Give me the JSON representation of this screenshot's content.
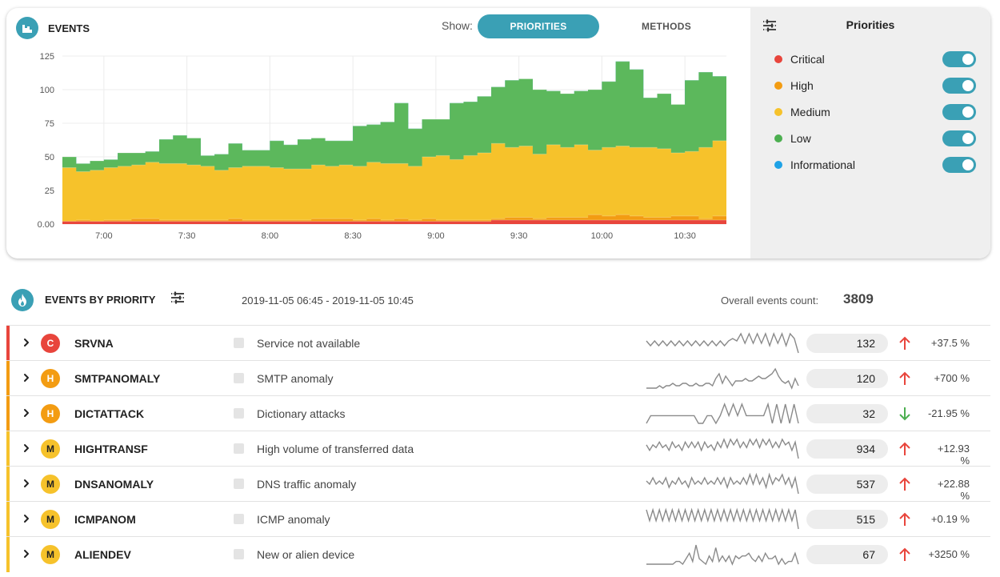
{
  "events_card": {
    "title": "EVENTS",
    "show_label": "Show:",
    "toggle_priorities": "PRIORITIES",
    "toggle_methods": "METHODS",
    "accent": "#3aa0b5"
  },
  "legend": {
    "title": "Priorities",
    "items": [
      {
        "label": "Critical",
        "color": "#e8453c",
        "enabled": true
      },
      {
        "label": "High",
        "color": "#f39c12",
        "enabled": true
      },
      {
        "label": "Medium",
        "color": "#f6c22b",
        "enabled": true
      },
      {
        "label": "Low",
        "color": "#4caf50",
        "enabled": true
      },
      {
        "label": "Informational",
        "color": "#1ea2e6",
        "enabled": true
      }
    ]
  },
  "chart_data": {
    "type": "area",
    "stacked": true,
    "ylim": [
      0,
      125
    ],
    "y_ticks": [
      "0.00",
      "25",
      "50",
      "75",
      "100",
      "125"
    ],
    "x_ticks": [
      "7:00",
      "7:30",
      "8:00",
      "8:30",
      "9:00",
      "9:30",
      "10:00",
      "10:30"
    ],
    "x_start": "6:45",
    "x_end": "10:45",
    "interval_minutes": 5,
    "grid": true,
    "series": [
      {
        "name": "Critical",
        "color": "#e8453c",
        "values": [
          2,
          2,
          2,
          2,
          2,
          2,
          2,
          2,
          2,
          2,
          2,
          2,
          2,
          2,
          2,
          2,
          2,
          2,
          2,
          2,
          2,
          2,
          2,
          2,
          2,
          2,
          2,
          2,
          2,
          2,
          2,
          3,
          3,
          3,
          3,
          3,
          3,
          3,
          3,
          3,
          3,
          3,
          3,
          3,
          3,
          3,
          3,
          3
        ]
      },
      {
        "name": "High",
        "color": "#f39c12",
        "values": [
          0,
          1,
          0,
          1,
          1,
          2,
          2,
          1,
          1,
          1,
          1,
          1,
          2,
          1,
          1,
          1,
          1,
          1,
          2,
          2,
          2,
          1,
          2,
          1,
          2,
          1,
          2,
          1,
          1,
          1,
          1,
          1,
          2,
          2,
          1,
          2,
          2,
          2,
          4,
          3,
          4,
          3,
          2,
          2,
          3,
          3,
          1,
          3
        ]
      },
      {
        "name": "Medium",
        "color": "#f6c22b",
        "values": [
          40,
          36,
          38,
          39,
          40,
          40,
          42,
          42,
          42,
          41,
          40,
          37,
          38,
          40,
          40,
          39,
          38,
          38,
          40,
          39,
          40,
          40,
          42,
          42,
          41,
          40,
          46,
          48,
          45,
          48,
          50,
          56,
          52,
          53,
          48,
          54,
          52,
          54,
          48,
          51,
          51,
          51,
          52,
          51,
          47,
          48,
          53,
          56
        ]
      },
      {
        "name": "Low",
        "color": "#5cb85c",
        "values": [
          8,
          6,
          7,
          6,
          10,
          9,
          8,
          18,
          21,
          20,
          8,
          12,
          18,
          12,
          12,
          20,
          18,
          22,
          20,
          19,
          18,
          30,
          28,
          31,
          45,
          28,
          28,
          27,
          42,
          40,
          42,
          42,
          50,
          50,
          48,
          40,
          40,
          40,
          45,
          49,
          63,
          58,
          37,
          41,
          36,
          53,
          56,
          48
        ]
      },
      {
        "name": "Informational",
        "color": "#1ea2e6",
        "values": [
          0,
          0,
          0,
          0,
          0,
          0,
          0,
          0,
          0,
          0,
          0,
          0,
          0,
          0,
          0,
          0,
          0,
          0,
          0,
          0,
          0,
          0,
          0,
          0,
          0,
          0,
          0,
          0,
          0,
          0,
          0,
          0,
          0,
          0,
          0,
          0,
          0,
          0,
          0,
          0,
          0,
          0,
          0,
          0,
          0,
          0,
          0,
          0
        ]
      }
    ]
  },
  "priority_section": {
    "title": "EVENTS BY PRIORITY",
    "range": "2019-11-05 06:45 - 2019-11-05 10:45",
    "count_label": "Overall events count:",
    "count": "3809"
  },
  "rows": [
    {
      "priority": "C",
      "priority_color": "#e8453c",
      "code": "SRVNA",
      "desc": "Service not available",
      "count": "132",
      "trend": "up",
      "change": "+37.5 %",
      "spark": [
        3,
        1,
        3,
        1,
        3,
        1,
        3,
        1,
        3,
        1,
        3,
        1,
        3,
        1,
        3,
        1,
        3,
        1,
        3,
        1,
        3,
        4,
        3,
        6,
        2,
        6,
        2,
        6,
        2,
        6,
        1,
        6,
        2,
        6,
        1,
        6,
        4,
        -2
      ]
    },
    {
      "priority": "H",
      "priority_color": "#f39c12",
      "code": "SMTPANOMALY",
      "desc": "SMTP anomaly",
      "count": "120",
      "trend": "up",
      "change": "+700 %",
      "spark": [
        0,
        0,
        0,
        0,
        1,
        0,
        1,
        1,
        2,
        1,
        1,
        2,
        2,
        1,
        1,
        2,
        1,
        1,
        2,
        2,
        1,
        4,
        6,
        2,
        5,
        3,
        1,
        3,
        3,
        3,
        4,
        3,
        3,
        4,
        5,
        4,
        4,
        5,
        6,
        8,
        5,
        3,
        2,
        3,
        0,
        4,
        1
      ]
    },
    {
      "priority": "H",
      "priority_color": "#f39c12",
      "code": "DICTATTACK",
      "desc": "Dictionary attacks",
      "count": "32",
      "trend": "down",
      "change": "-21.95 %",
      "spark": [
        0,
        2,
        2,
        2,
        2,
        2,
        2,
        2,
        2,
        2,
        2,
        2,
        0,
        0,
        2,
        2,
        0,
        2,
        5,
        2,
        5,
        2,
        5,
        2,
        2,
        2,
        2,
        2,
        5,
        0,
        5,
        0,
        5,
        0,
        5,
        0
      ]
    },
    {
      "priority": "M",
      "priority_color": "#f6c22b",
      "code": "HIGHTRANSF",
      "desc": "High volume of transferred data",
      "count": "934",
      "trend": "up",
      "change": "+12.93 %",
      "spark": [
        3,
        1,
        3,
        2,
        4,
        2,
        3,
        1,
        4,
        2,
        3,
        1,
        4,
        2,
        4,
        2,
        4,
        1,
        4,
        2,
        3,
        1,
        4,
        2,
        5,
        2,
        5,
        3,
        5,
        2,
        4,
        2,
        5,
        3,
        5,
        2,
        5,
        3,
        5,
        2,
        4,
        2,
        5,
        3,
        4,
        1,
        4,
        -2
      ]
    },
    {
      "priority": "M",
      "priority_color": "#f6c22b",
      "code": "DNSANOMALY",
      "desc": "DNS traffic anomaly",
      "count": "537",
      "trend": "up",
      "change": "+22.88 %",
      "spark": [
        3,
        2,
        4,
        2,
        3,
        2,
        4,
        1,
        3,
        2,
        4,
        2,
        3,
        1,
        4,
        2,
        3,
        2,
        4,
        2,
        3,
        2,
        4,
        2,
        4,
        1,
        4,
        2,
        3,
        2,
        4,
        2,
        5,
        2,
        5,
        2,
        4,
        1,
        5,
        2,
        4,
        3,
        5,
        2,
        4,
        1,
        4,
        -1
      ]
    },
    {
      "priority": "M",
      "priority_color": "#f6c22b",
      "code": "ICMPANOM",
      "desc": "ICMP anomaly",
      "count": "515",
      "trend": "up",
      "change": "+0.19 %",
      "spark": [
        5,
        1,
        5,
        1,
        5,
        1,
        5,
        1,
        5,
        1,
        5,
        1,
        5,
        1,
        5,
        1,
        5,
        1,
        5,
        1,
        5,
        1,
        5,
        1,
        5,
        1,
        5,
        1,
        5,
        1,
        5,
        1,
        5,
        1,
        5,
        1,
        5,
        1,
        5,
        1,
        5,
        1,
        5,
        1,
        5,
        1,
        5,
        -2
      ]
    },
    {
      "priority": "M",
      "priority_color": "#f6c22b",
      "code": "ALIENDEV",
      "desc": "New or alien device",
      "count": "67",
      "trend": "up",
      "change": "+3250 %",
      "spark": [
        0,
        0,
        0,
        0,
        0,
        0,
        0,
        0,
        0,
        1,
        1,
        0,
        2,
        4,
        1,
        7,
        2,
        1,
        0,
        3,
        1,
        6,
        1,
        3,
        1,
        3,
        0,
        3,
        2,
        3,
        3,
        4,
        2,
        1,
        3,
        1,
        4,
        2,
        2,
        3,
        0,
        2,
        0,
        1,
        1,
        4,
        0
      ]
    }
  ]
}
